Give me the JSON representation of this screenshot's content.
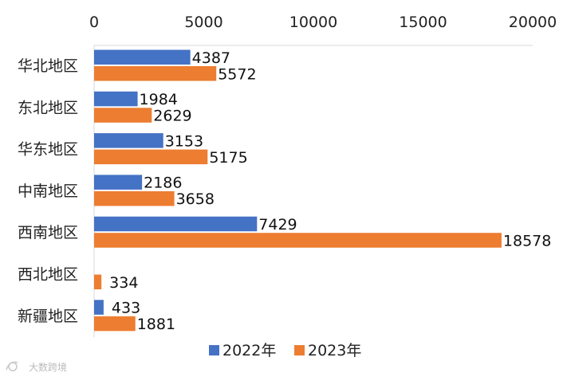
{
  "chart_data": {
    "type": "bar",
    "orientation": "horizontal",
    "title": "",
    "xlabel": "",
    "ylabel": "",
    "xlim": [
      0,
      20000
    ],
    "x_ticks": [
      0,
      5000,
      10000,
      15000,
      20000
    ],
    "x_axis_position": "top",
    "grid": false,
    "legend_position": "bottom",
    "categories": [
      "华北地区",
      "东北地区",
      "华东地区",
      "中南地区",
      "西南地区",
      "西北地区",
      "新疆地区"
    ],
    "series": [
      {
        "name": "2022年",
        "color": "#4472C4",
        "values": [
          4387,
          1984,
          3153,
          2186,
          7429,
          null,
          433
        ],
        "labels": [
          "4387",
          "1984",
          "3153",
          "2186",
          "7429",
          "",
          "433"
        ]
      },
      {
        "name": "2023年",
        "color": "#ED7D31",
        "values": [
          5572,
          2629,
          5175,
          3658,
          18578,
          334,
          1881
        ],
        "labels": [
          "5572",
          "2629",
          "5175",
          "3658",
          "18578",
          "334",
          "1881"
        ]
      }
    ]
  },
  "watermark": {
    "text": "大数跨境"
  }
}
